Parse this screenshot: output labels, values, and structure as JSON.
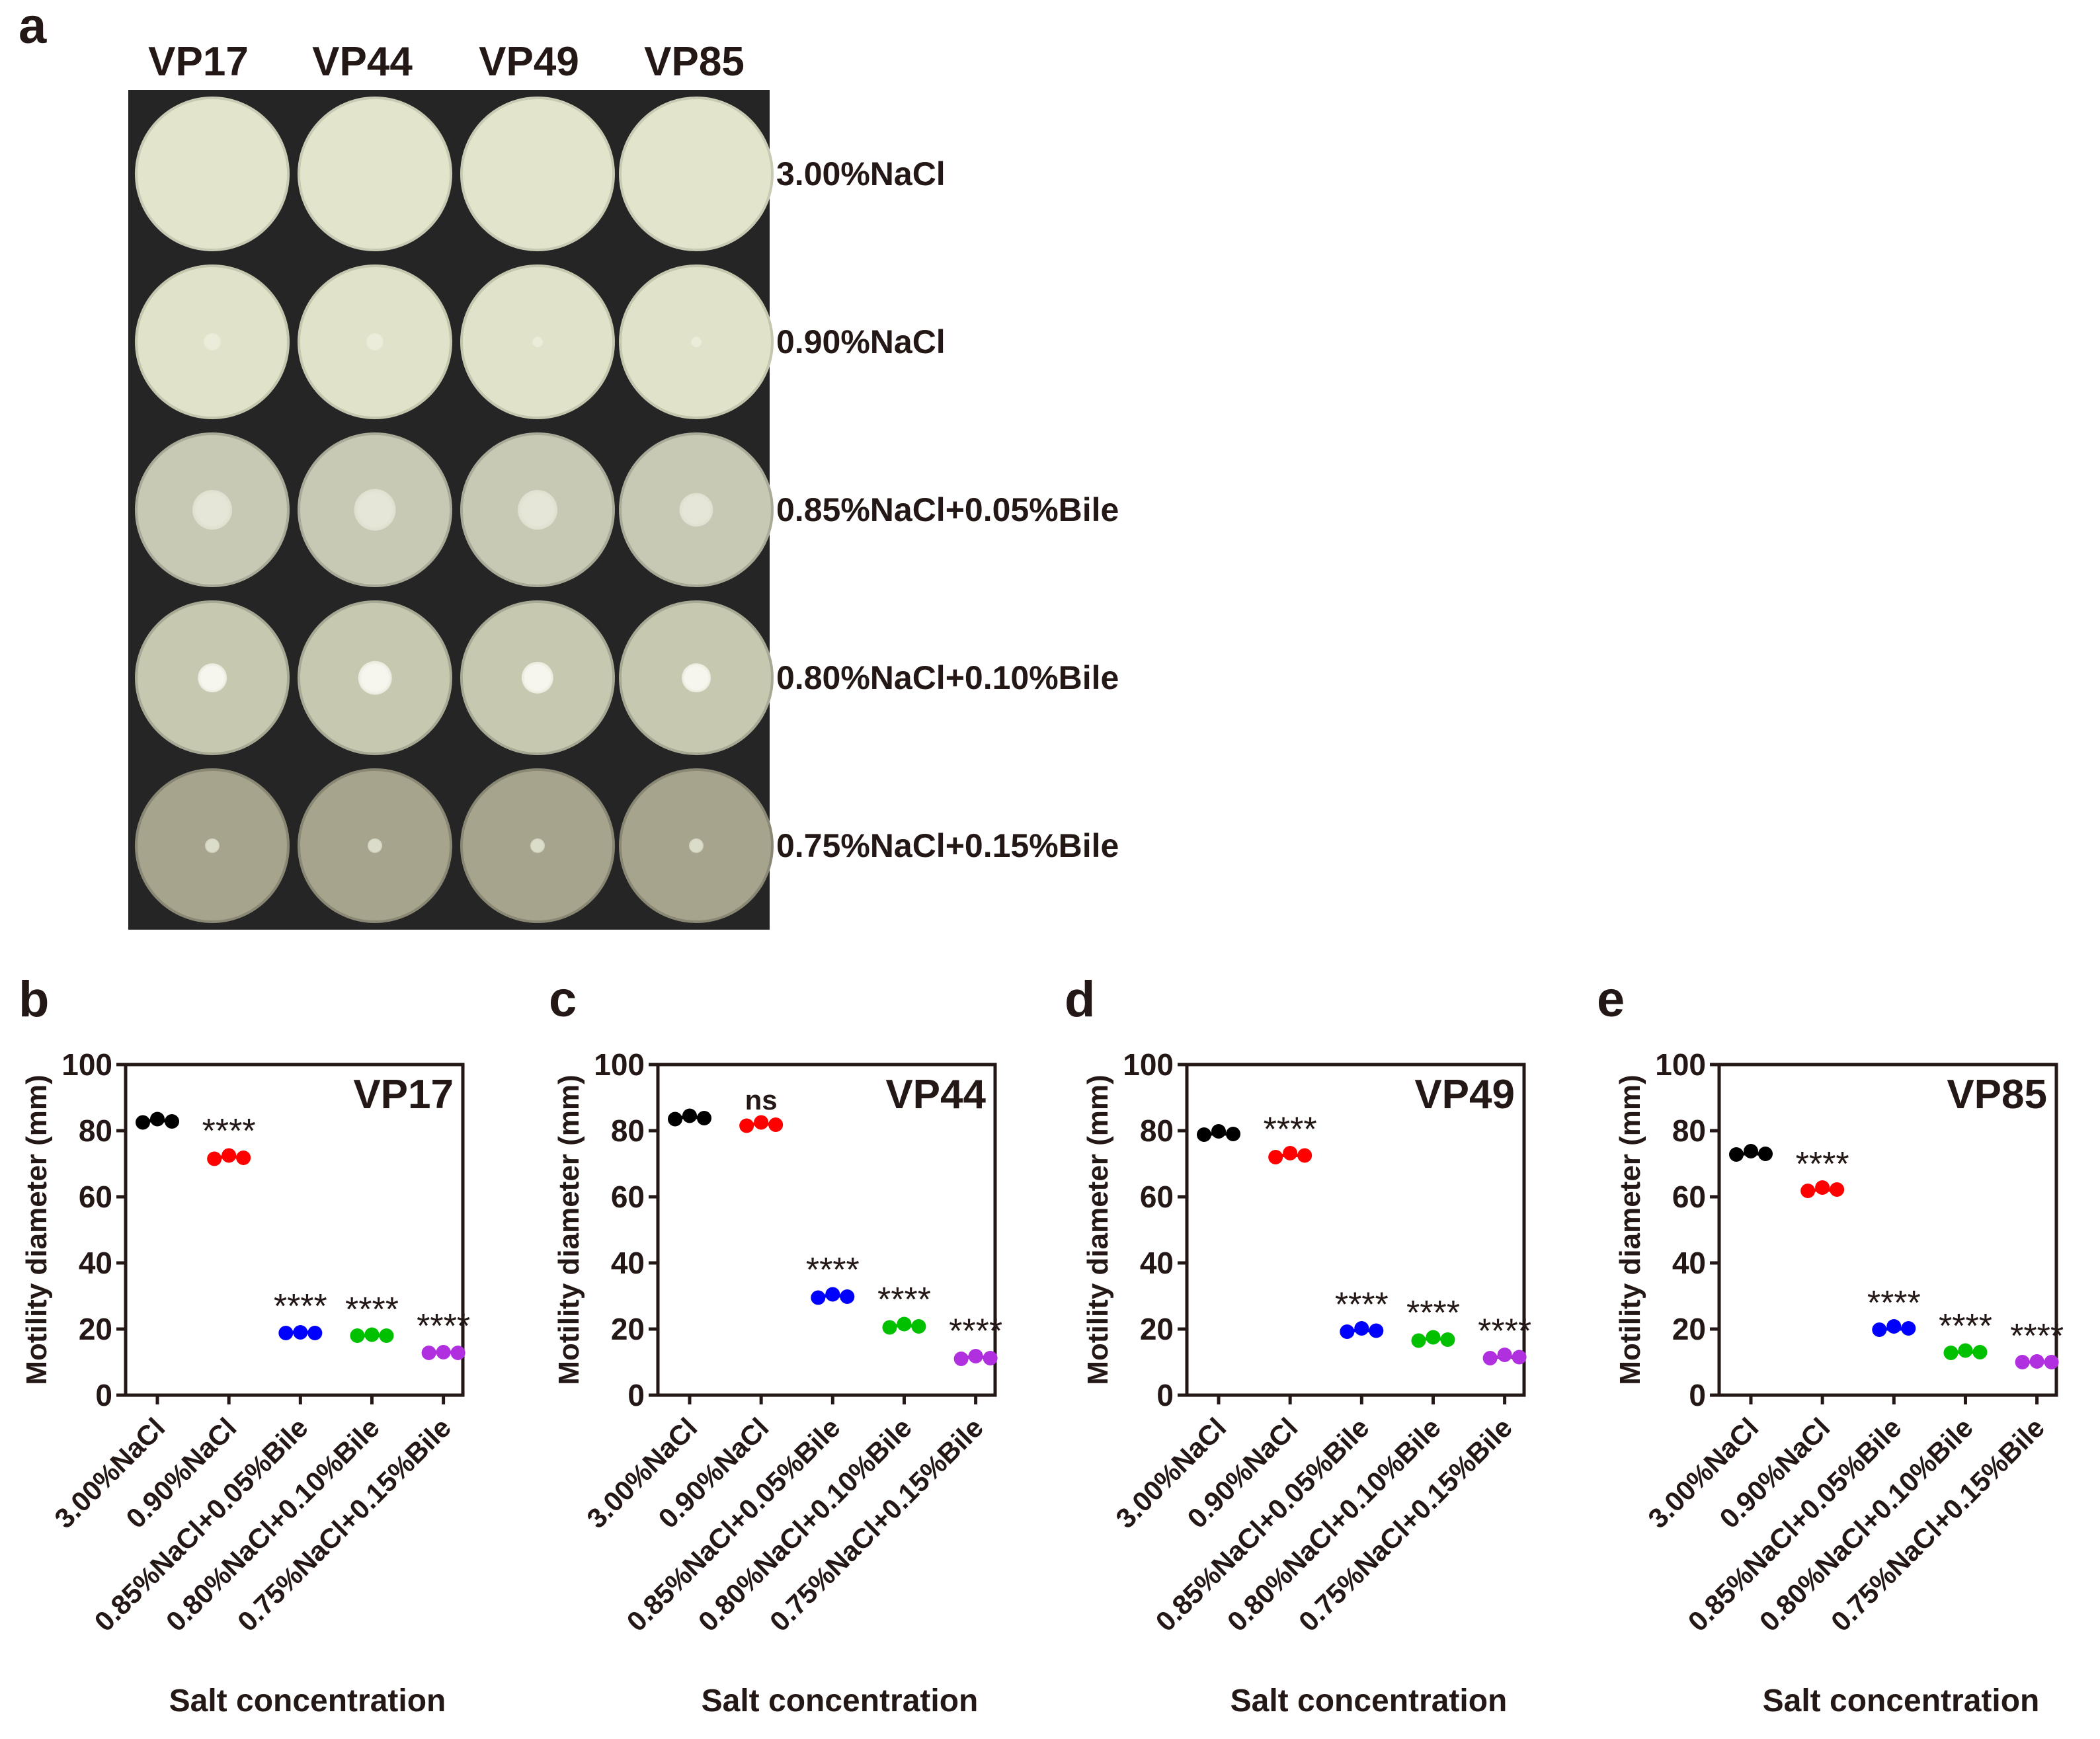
{
  "panels": {
    "a": "a",
    "b": "b",
    "c": "c",
    "d": "d",
    "e": "e"
  },
  "plate_photo": {
    "strains": [
      "VP17",
      "VP44",
      "VP49",
      "VP85"
    ],
    "conditions": [
      "3.00%NaCl",
      "0.90%NaCl",
      "0.85%NaCl+0.05%Bile",
      "0.80%NaCl+0.10%Bile",
      "0.75%NaCl+0.15%Bile"
    ]
  },
  "colors": {
    "3.00%NaCl": "#000000",
    "0.90%NaCl": "#ff0000",
    "0.85%NaCl+0.05%Bile": "#0000ff",
    "0.80%NaCl+0.10%Bile": "#00c000",
    "0.75%NaCl+0.15%Bile": "#b030e0",
    "text": "#231815"
  },
  "chart_data": [
    {
      "type": "scatter",
      "title": "VP17",
      "xlabel": "Salt concentration",
      "ylabel": "Motility diameter (mm)",
      "ylim": [
        0,
        100
      ],
      "yticks": [
        0,
        20,
        40,
        60,
        80,
        100
      ],
      "categories": [
        "3.00%NaCl",
        "0.90%NaCl",
        "0.85%NaCl+0.05%Bile",
        "0.80%NaCl+0.10%Bile",
        "0.75%NaCl+0.15%Bile"
      ],
      "replicates": [
        [
          82.5,
          83.5,
          82.8
        ],
        [
          71.5,
          72.5,
          71.8
        ],
        [
          18.8,
          19.0,
          18.8
        ],
        [
          18.0,
          18.3,
          18.0
        ],
        [
          12.8,
          13.0,
          12.8
        ]
      ],
      "means": [
        83,
        72,
        19,
        18,
        13
      ],
      "significance": [
        "",
        "****",
        "****",
        "****",
        "****"
      ]
    },
    {
      "type": "scatter",
      "title": "VP44",
      "xlabel": "Salt concentration",
      "ylabel": "Motility diameter (mm)",
      "ylim": [
        0,
        100
      ],
      "yticks": [
        0,
        20,
        40,
        60,
        80,
        100
      ],
      "categories": [
        "3.00%NaCl",
        "0.90%NaCl",
        "0.85%NaCl+0.05%Bile",
        "0.80%NaCl+0.10%Bile",
        "0.75%NaCl+0.15%Bile"
      ],
      "replicates": [
        [
          83.5,
          84.5,
          83.8
        ],
        [
          81.5,
          82.5,
          81.8
        ],
        [
          29.5,
          30.5,
          29.8
        ],
        [
          20.5,
          21.5,
          20.8
        ],
        [
          11.0,
          11.8,
          11.2
        ]
      ],
      "means": [
        84,
        82,
        30,
        21,
        11.5
      ],
      "significance": [
        "",
        "ns",
        "****",
        "****",
        "****"
      ]
    },
    {
      "type": "scatter",
      "title": "VP49",
      "xlabel": "Salt concentration",
      "ylabel": "Motility diameter (mm)",
      "ylim": [
        0,
        100
      ],
      "yticks": [
        0,
        20,
        40,
        60,
        80,
        100
      ],
      "categories": [
        "3.00%NaCl",
        "0.90%NaCl",
        "0.85%NaCl+0.05%Bile",
        "0.80%NaCl+0.10%Bile",
        "0.75%NaCl+0.15%Bile"
      ],
      "replicates": [
        [
          78.8,
          79.8,
          79.0
        ],
        [
          72.0,
          73.2,
          72.5
        ],
        [
          19.2,
          20.2,
          19.5
        ],
        [
          16.5,
          17.5,
          16.8
        ],
        [
          11.2,
          12.2,
          11.5
        ]
      ],
      "means": [
        79,
        72.5,
        19.5,
        17,
        11.5
      ],
      "significance": [
        "",
        "****",
        "****",
        "****",
        "****"
      ]
    },
    {
      "type": "scatter",
      "title": "VP85",
      "xlabel": "Salt concentration",
      "ylabel": "Motility diameter (mm)",
      "ylim": [
        0,
        100
      ],
      "yticks": [
        0,
        20,
        40,
        60,
        80,
        100
      ],
      "categories": [
        "3.00%NaCl",
        "0.90%NaCl",
        "0.85%NaCl+0.05%Bile",
        "0.80%NaCl+0.10%Bile",
        "0.75%NaCl+0.15%Bile"
      ],
      "replicates": [
        [
          72.8,
          73.8,
          73.0
        ],
        [
          61.8,
          62.8,
          62.2
        ],
        [
          19.8,
          20.8,
          20.2
        ],
        [
          12.8,
          13.5,
          13.0
        ],
        [
          10.0,
          10.2,
          10.0
        ]
      ],
      "means": [
        73,
        62,
        20,
        13,
        10
      ],
      "significance": [
        "",
        "****",
        "****",
        "****",
        "****"
      ]
    }
  ]
}
